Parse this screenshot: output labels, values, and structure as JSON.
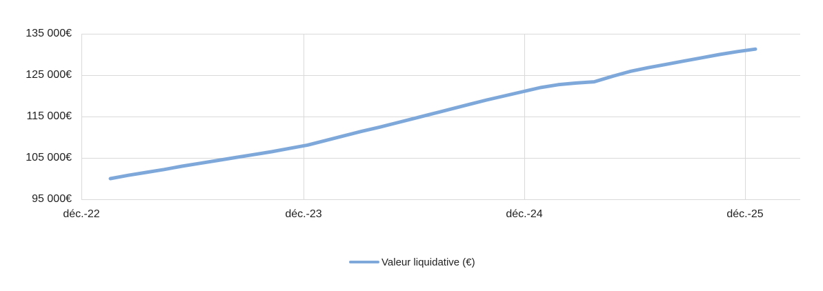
{
  "colors": {
    "series_line": "#7FA8DA",
    "gridline": "#D9D9D9",
    "text": "#212121",
    "background": "#FFFFFF"
  },
  "legend": {
    "label": "Valeur liquidative (€)",
    "position": "bottom"
  },
  "chart_data": {
    "type": "line",
    "title": "",
    "xlabel": "",
    "ylabel": "",
    "grid": true,
    "legend_position": "bottom",
    "y_axis": {
      "range": [
        95000,
        135000
      ],
      "ticks": [
        135000,
        125000,
        115000,
        105000,
        95000
      ],
      "tick_labels": [
        "135 000€",
        "125 000€",
        "115 000€",
        "105 000€",
        "95 000€"
      ]
    },
    "x_axis": {
      "tick_labels": [
        "déc.-22",
        "déc.-23",
        "déc.-24",
        "déc.-25"
      ]
    },
    "series": [
      {
        "name": "Valeur liquidative (€)",
        "color": "#7FA8DA",
        "x": [
          "janv.-23",
          "févr.-23",
          "mars-23",
          "avr.-23",
          "mai-23",
          "juin-23",
          "juil.-23",
          "août-23",
          "sept.-23",
          "oct.-23",
          "nov.-23",
          "déc.-23",
          "janv.-24",
          "févr.-24",
          "mars-24",
          "avr.-24",
          "mai-24",
          "juin-24",
          "juil.-24",
          "août-24",
          "sept.-24",
          "oct.-24",
          "nov.-24",
          "déc.-24",
          "janv.-25",
          "févr.-25",
          "mars-25",
          "avr.-25",
          "mai-25",
          "juin-25",
          "juil.-25",
          "août-25",
          "sept.-25",
          "oct.-25",
          "nov.-25",
          "déc.-25",
          "janv.-26"
        ],
        "values": [
          100000,
          100800,
          101500,
          102200,
          103000,
          103700,
          104400,
          105100,
          105800,
          106500,
          107300,
          108100,
          109200,
          110300,
          111400,
          112400,
          113500,
          114600,
          115700,
          116800,
          117900,
          119000,
          120000,
          121000,
          122000,
          122700,
          123100,
          123400,
          124700,
          125900,
          126800,
          127600,
          128400,
          129200,
          130000,
          130700,
          131300
        ]
      }
    ]
  }
}
